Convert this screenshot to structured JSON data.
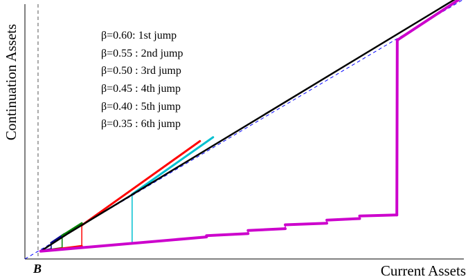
{
  "chart_data": {
    "type": "line",
    "title": "",
    "xlabel": "Current Assets",
    "ylabel": "Continuation Assets",
    "xlim": [
      0,
      10
    ],
    "ylim": [
      0,
      10
    ],
    "grid": false,
    "threshold_label": "B",
    "threshold_x": 0.3,
    "annotations": [
      "β=0.60: 1st jump",
      "β=0.55 : 2nd jump",
      "β=0.50 : 3rd jump",
      "β=0.45 : 4th jump",
      "β=0.40 : 5th jump",
      "β=0.35 : 6th jump"
    ],
    "reference_line": {
      "name": "45-degree line",
      "color": "#0000ff",
      "x": [
        0,
        10
      ],
      "y": [
        0,
        10
      ]
    },
    "series": [
      {
        "color": "#00008b",
        "x": [
          0.36,
          0.6,
          0.6,
          0.9
        ],
        "y": [
          0.3,
          0.38,
          0.62,
          0.96
        ]
      },
      {
        "color": "#008000",
        "x": [
          0.36,
          0.85,
          0.85,
          1.3
        ],
        "y": [
          0.3,
          0.42,
          0.9,
          1.38
        ]
      },
      {
        "color": "#ff0000",
        "x": [
          0.36,
          1.3,
          1.3,
          4.0
        ],
        "y": [
          0.3,
          0.5,
          1.3,
          4.55
        ]
      },
      {
        "color": "#00c0d0",
        "x": [
          0.36,
          2.45,
          2.45,
          4.3
        ],
        "y": [
          0.3,
          0.6,
          2.5,
          4.7
        ]
      },
      {
        "color": "#000000",
        "x": [
          0.36,
          1.0,
          9.85
        ],
        "y": [
          0.3,
          1.0,
          10.05
        ]
      },
      {
        "color": "#cc00cc",
        "x": [
          0.36,
          4.15,
          4.15,
          5.1,
          5.1,
          5.95,
          5.95,
          6.9,
          6.9,
          7.65,
          7.65,
          8.5,
          8.5,
          8.51,
          8.51,
          9.95
        ],
        "y": [
          0.3,
          0.85,
          0.9,
          0.98,
          1.1,
          1.17,
          1.32,
          1.38,
          1.5,
          1.56,
          1.66,
          1.7,
          1.7,
          8.45,
          8.45,
          10.05
        ]
      }
    ]
  }
}
